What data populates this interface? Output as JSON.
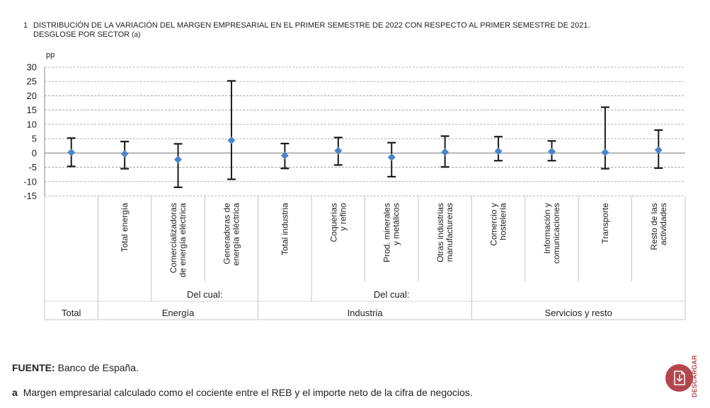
{
  "title": {
    "number": "1",
    "line1": "DISTRIBUCIÓN DE LA VARIACIÓN DEL MARGEN EMPRESARIAL EN EL PRIMER SEMESTRE DE 2022 CON RESPECTO AL PRIMER SEMESTRE DE 2021.",
    "line2": "DESGLOSE POR SECTOR",
    "line2_suffix": "(a)"
  },
  "footer": {
    "source_label": "FUENTE:",
    "source_text": "Banco de España.",
    "note_label": "a",
    "note_text": "Margen empresarial calculado como el cociente entre el REB y el importe neto de la cifra de negocios."
  },
  "download": {
    "label": "DESCARGAR",
    "icon": "download-document-icon"
  },
  "colors": {
    "marker": "#4a86c8",
    "whisker": "#1a1a1a",
    "grid": "#9a9a9a",
    "accent": "#b3474d"
  },
  "chart_data": {
    "type": "errorbar",
    "ylabel": "pp",
    "ylim": [
      -15,
      30
    ],
    "yticks": [
      30,
      25,
      20,
      15,
      10,
      5,
      0,
      -5,
      -10,
      -15
    ],
    "grid": true,
    "categories": [
      {
        "label": "Total",
        "sub_label": [
          ""
        ],
        "value": 0.2,
        "low": -4.7,
        "high": 5.2
      },
      {
        "label": "Total energía",
        "sub_label": [
          "Total energía"
        ],
        "value": -0.3,
        "low": -5.5,
        "high": 4.0
      },
      {
        "label": "Comercializadoras de energía eléctrica",
        "sub_label": [
          "Comercializadoras",
          "de energía eléctrica"
        ],
        "value": -2.3,
        "low": -12.0,
        "high": 3.2
      },
      {
        "label": "Generadoras de energía eléctrica",
        "sub_label": [
          "Generadoras de",
          "energía eléctrica"
        ],
        "value": 4.4,
        "low": -9.2,
        "high": 25.2
      },
      {
        "label": "Total industria",
        "sub_label": [
          "Total industria"
        ],
        "value": -0.9,
        "low": -5.4,
        "high": 3.3
      },
      {
        "label": "Coquerías y refino",
        "sub_label": [
          "Coquerías",
          "y refino"
        ],
        "value": 0.8,
        "low": -4.2,
        "high": 5.4
      },
      {
        "label": "Prod. minerales y metálicos",
        "sub_label": [
          "Prod. minerales",
          "y metálicos"
        ],
        "value": -1.5,
        "low": -8.3,
        "high": 3.6
      },
      {
        "label": "Otras industrias manufactureras",
        "sub_label": [
          "Otras industrias",
          "manufactureras"
        ],
        "value": 0.3,
        "low": -4.9,
        "high": 5.9
      },
      {
        "label": "Comercio y hostelería",
        "sub_label": [
          "Comercio y",
          "hostelería"
        ],
        "value": 0.6,
        "low": -2.7,
        "high": 5.7
      },
      {
        "label": "Información y comunicaciones",
        "sub_label": [
          "Información y",
          "comunicaciones"
        ],
        "value": 0.5,
        "low": -2.7,
        "high": 4.2
      },
      {
        "label": "Transporte",
        "sub_label": [
          "Transporte"
        ],
        "value": 0.2,
        "low": -5.5,
        "high": 16.0
      },
      {
        "label": "Resto de las actividades",
        "sub_label": [
          "Resto de las",
          "actividades"
        ],
        "value": 1.0,
        "low": -5.3,
        "high": 8.0
      }
    ],
    "groups": [
      {
        "label": "Total",
        "start": 0,
        "end": 0
      },
      {
        "label": "Energía",
        "start": 1,
        "end": 3
      },
      {
        "label": "Industria",
        "start": 4,
        "end": 7
      },
      {
        "label": "Servicios y resto",
        "start": 8,
        "end": 11
      }
    ],
    "subgroups": [
      {
        "label": "Del cual:",
        "start": 2,
        "end": 3
      },
      {
        "label": "Del cual:",
        "start": 5,
        "end": 7
      }
    ]
  }
}
